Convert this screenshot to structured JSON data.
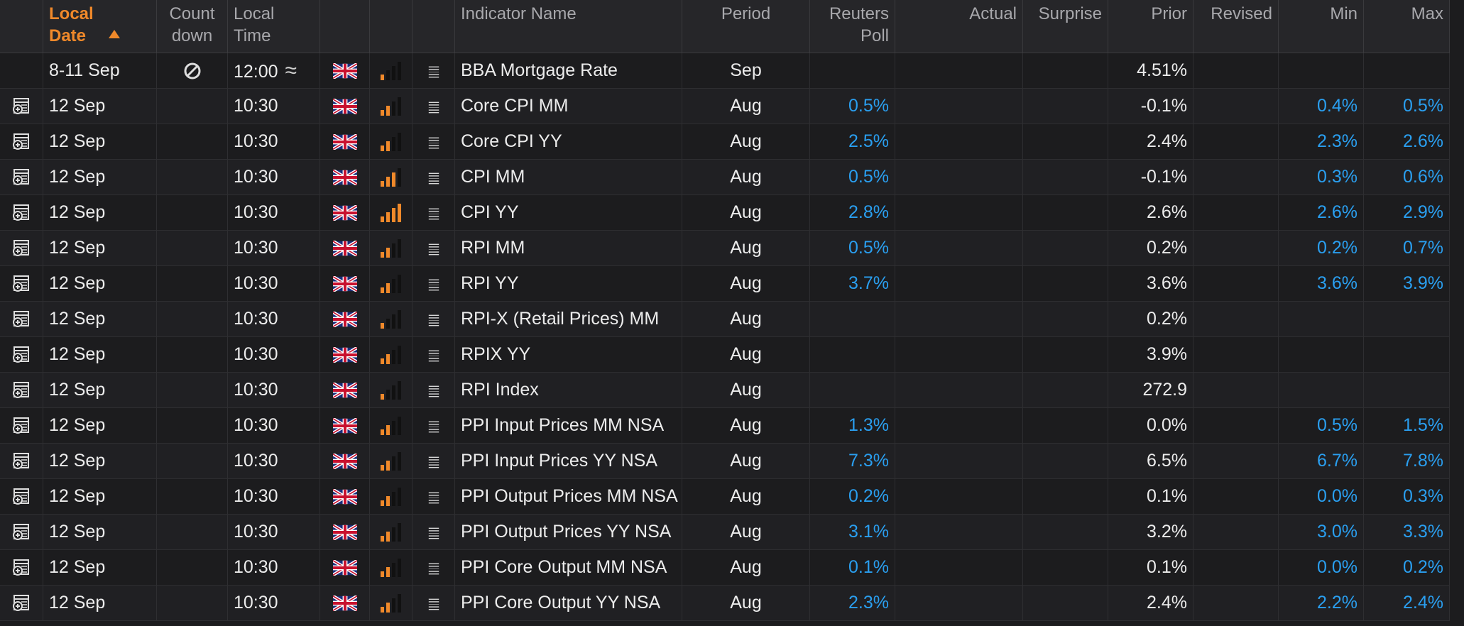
{
  "headers": {
    "local_date": "Local Date",
    "countdown": "Count down",
    "local_time": "Local Time",
    "indicator_name": "Indicator Name",
    "period": "Period",
    "reuters_poll": "Reuters Poll",
    "actual": "Actual",
    "surprise": "Surprise",
    "prior": "Prior",
    "revised": "Revised",
    "min": "Min",
    "max": "Max"
  },
  "colors": {
    "accent": "#f0892a",
    "poll_value": "#2a9ff0",
    "background": "#1c1c1e"
  },
  "rows": [
    {
      "date": "8-11 Sep",
      "countdown": "no-entry-icon",
      "time": "12:00",
      "approx": "≈",
      "importance": 1,
      "name": "BBA Mortgage Rate",
      "period": "Sep",
      "poll": "",
      "actual": "",
      "surprise": "",
      "prior": "4.51%",
      "revised": "",
      "min": "",
      "max": "",
      "has_calendar": false
    },
    {
      "date": "12 Sep",
      "time": "10:30",
      "importance": 2,
      "name": "Core CPI MM",
      "period": "Aug",
      "poll": "0.5%",
      "prior": "-0.1%",
      "min": "0.4%",
      "max": "0.5%",
      "has_calendar": true
    },
    {
      "date": "12 Sep",
      "time": "10:30",
      "importance": 2,
      "name": "Core CPI YY",
      "period": "Aug",
      "poll": "2.5%",
      "prior": "2.4%",
      "min": "2.3%",
      "max": "2.6%",
      "has_calendar": true
    },
    {
      "date": "12 Sep",
      "time": "10:30",
      "importance": 3,
      "name": "CPI MM",
      "period": "Aug",
      "poll": "0.5%",
      "prior": "-0.1%",
      "min": "0.3%",
      "max": "0.6%",
      "has_calendar": true
    },
    {
      "date": "12 Sep",
      "time": "10:30",
      "importance": 4,
      "name": "CPI YY",
      "period": "Aug",
      "poll": "2.8%",
      "prior": "2.6%",
      "min": "2.6%",
      "max": "2.9%",
      "has_calendar": true
    },
    {
      "date": "12 Sep",
      "time": "10:30",
      "importance": 2,
      "name": "RPI MM",
      "period": "Aug",
      "poll": "0.5%",
      "prior": "0.2%",
      "min": "0.2%",
      "max": "0.7%",
      "has_calendar": true
    },
    {
      "date": "12 Sep",
      "time": "10:30",
      "importance": 2,
      "name": "RPI YY",
      "period": "Aug",
      "poll": "3.7%",
      "prior": "3.6%",
      "min": "3.6%",
      "max": "3.9%",
      "has_calendar": true
    },
    {
      "date": "12 Sep",
      "time": "10:30",
      "importance": 1,
      "name": "RPI-X (Retail Prices) MM",
      "period": "Aug",
      "poll": "",
      "prior": "0.2%",
      "min": "",
      "max": "",
      "has_calendar": true
    },
    {
      "date": "12 Sep",
      "time": "10:30",
      "importance": 2,
      "name": "RPIX YY",
      "period": "Aug",
      "poll": "",
      "prior": "3.9%",
      "min": "",
      "max": "",
      "has_calendar": true
    },
    {
      "date": "12 Sep",
      "time": "10:30",
      "importance": 1,
      "name": "RPI Index",
      "period": "Aug",
      "poll": "",
      "prior": "272.9",
      "min": "",
      "max": "",
      "has_calendar": true
    },
    {
      "date": "12 Sep",
      "time": "10:30",
      "importance": 2,
      "name": "PPI Input Prices MM NSA",
      "period": "Aug",
      "poll": "1.3%",
      "prior": "0.0%",
      "min": "0.5%",
      "max": "1.5%",
      "has_calendar": true
    },
    {
      "date": "12 Sep",
      "time": "10:30",
      "importance": 2,
      "name": "PPI Input Prices YY NSA",
      "period": "Aug",
      "poll": "7.3%",
      "prior": "6.5%",
      "min": "6.7%",
      "max": "7.8%",
      "has_calendar": true
    },
    {
      "date": "12 Sep",
      "time": "10:30",
      "importance": 2,
      "name": "PPI Output Prices MM NSA",
      "period": "Aug",
      "poll": "0.2%",
      "prior": "0.1%",
      "min": "0.0%",
      "max": "0.3%",
      "has_calendar": true
    },
    {
      "date": "12 Sep",
      "time": "10:30",
      "importance": 2,
      "name": "PPI Output Prices YY NSA",
      "period": "Aug",
      "poll": "3.1%",
      "prior": "3.2%",
      "min": "3.0%",
      "max": "3.3%",
      "has_calendar": true
    },
    {
      "date": "12 Sep",
      "time": "10:30",
      "importance": 2,
      "name": "PPI Core Output MM NSA",
      "period": "Aug",
      "poll": "0.1%",
      "prior": "0.1%",
      "min": "0.0%",
      "max": "0.2%",
      "has_calendar": true
    },
    {
      "date": "12 Sep",
      "time": "10:30",
      "importance": 2,
      "name": "PPI Core Output YY NSA",
      "period": "Aug",
      "poll": "2.3%",
      "prior": "2.4%",
      "min": "2.2%",
      "max": "2.4%",
      "has_calendar": true
    }
  ]
}
